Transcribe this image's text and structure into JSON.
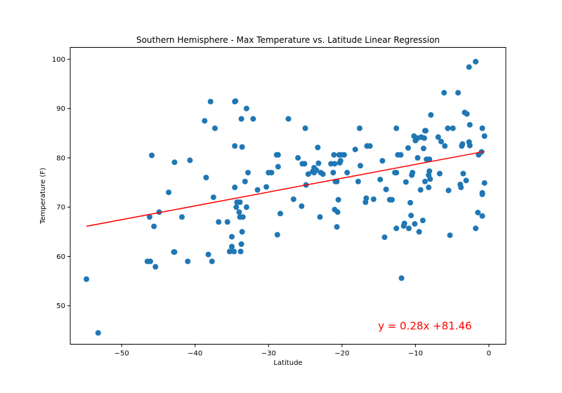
{
  "chart_data": {
    "type": "scatter",
    "title": "Southern Hemisphere - Max Temperature vs. Latitude Linear Regression",
    "xlabel": "Latitude",
    "ylabel": "Temperature (F)",
    "xlim": [
      -57,
      2.3
    ],
    "ylim": [
      42.2,
      102.4
    ],
    "xticks": [
      -50,
      -40,
      -30,
      -20,
      -10,
      0
    ],
    "xtick_labels": [
      "−50",
      "−40",
      "−30",
      "−20",
      "−10",
      "0"
    ],
    "yticks": [
      50,
      60,
      70,
      80,
      90,
      100
    ],
    "grid": false,
    "point_color": "#1f77b4",
    "line_color": "#ff0000",
    "series": [
      {
        "points": [
          [
            -54.8,
            55.4
          ],
          [
            -53.2,
            44.5
          ],
          [
            -46.5,
            59.0
          ],
          [
            -46.1,
            59.0
          ],
          [
            -46.2,
            68.0
          ],
          [
            -45.9,
            80.5
          ],
          [
            -45.6,
            66.1
          ],
          [
            -45.4,
            57.9
          ],
          [
            -44.9,
            69.0
          ],
          [
            -43.6,
            73.0
          ],
          [
            -42.9,
            60.9
          ],
          [
            -42.8,
            60.9
          ],
          [
            -42.8,
            79.1
          ],
          [
            -41.8,
            68.0
          ],
          [
            -41.0,
            59.0
          ],
          [
            -40.7,
            79.5
          ],
          [
            -38.7,
            87.5
          ],
          [
            -38.5,
            76.0
          ],
          [
            -38.2,
            60.4
          ],
          [
            -37.9,
            91.4
          ],
          [
            -37.7,
            59.0
          ],
          [
            -37.5,
            72.0
          ],
          [
            -37.3,
            86.0
          ],
          [
            -36.8,
            67.0
          ],
          [
            -35.6,
            67.0
          ],
          [
            -35.3,
            61.0
          ],
          [
            -35.0,
            64.0
          ],
          [
            -35.0,
            62.0
          ],
          [
            -34.7,
            61.0
          ],
          [
            -34.6,
            82.4
          ],
          [
            -34.6,
            91.4
          ],
          [
            -34.5,
            91.5
          ],
          [
            -34.6,
            74.0
          ],
          [
            -34.4,
            70.0
          ],
          [
            -34.3,
            71.0
          ],
          [
            -34.0,
            69.0
          ],
          [
            -33.9,
            71.0
          ],
          [
            -33.9,
            68.0
          ],
          [
            -33.7,
            62.5
          ],
          [
            -33.8,
            61.0
          ],
          [
            -33.6,
            65.0
          ],
          [
            -33.6,
            82.2
          ],
          [
            -33.5,
            68.0
          ],
          [
            -33.7,
            87.9
          ],
          [
            -33.2,
            75.2
          ],
          [
            -33.0,
            90.0
          ],
          [
            -33.0,
            70.0
          ],
          [
            -32.8,
            77.0
          ],
          [
            -32.1,
            87.9
          ],
          [
            -31.5,
            73.5
          ],
          [
            -30.3,
            74.1
          ],
          [
            -30.0,
            77.0
          ],
          [
            -29.6,
            77.0
          ],
          [
            -28.9,
            80.6
          ],
          [
            -28.8,
            64.4
          ],
          [
            -28.7,
            80.6
          ],
          [
            -28.7,
            78.2
          ],
          [
            -28.4,
            68.7
          ],
          [
            -27.3,
            87.9
          ],
          [
            -26.6,
            71.6
          ],
          [
            -26.0,
            80.0
          ],
          [
            -25.5,
            70.2
          ],
          [
            -25.4,
            78.8
          ],
          [
            -25.1,
            78.8
          ],
          [
            -25.0,
            86.0
          ],
          [
            -24.9,
            74.5
          ],
          [
            -24.6,
            76.7
          ],
          [
            -24.0,
            77.2
          ],
          [
            -23.8,
            77.0
          ],
          [
            -23.8,
            78.0
          ],
          [
            -23.5,
            77.5
          ],
          [
            -23.3,
            82.1
          ],
          [
            -23.2,
            78.9
          ],
          [
            -23.0,
            68.0
          ],
          [
            -22.9,
            77.0
          ],
          [
            -22.6,
            76.7
          ],
          [
            -21.5,
            78.8
          ],
          [
            -21.2,
            77.0
          ],
          [
            -21.1,
            80.6
          ],
          [
            -21.0,
            78.8
          ],
          [
            -21.0,
            69.5
          ],
          [
            -20.9,
            75.2
          ],
          [
            -20.7,
            75.2
          ],
          [
            -20.7,
            66.0
          ],
          [
            -20.6,
            69.0
          ],
          [
            -20.5,
            71.5
          ],
          [
            -20.4,
            80.6
          ],
          [
            -20.3,
            79.0
          ],
          [
            -20.2,
            79.4
          ],
          [
            -20.1,
            80.6
          ],
          [
            -19.7,
            80.6
          ],
          [
            -19.3,
            77.0
          ],
          [
            -18.2,
            81.7
          ],
          [
            -17.8,
            75.2
          ],
          [
            -17.6,
            86.0
          ],
          [
            -17.5,
            78.4
          ],
          [
            -16.8,
            71.0
          ],
          [
            -16.7,
            71.8
          ],
          [
            -16.6,
            82.4
          ],
          [
            -16.2,
            82.4
          ],
          [
            -15.7,
            71.6
          ],
          [
            -14.8,
            75.6
          ],
          [
            -14.5,
            79.4
          ],
          [
            -14.2,
            63.9
          ],
          [
            -14.0,
            73.6
          ],
          [
            -13.5,
            71.5
          ],
          [
            -13.2,
            71.5
          ],
          [
            -12.8,
            77.0
          ],
          [
            -12.6,
            77.0
          ],
          [
            -12.6,
            65.7
          ],
          [
            -12.6,
            86.0
          ],
          [
            -12.4,
            80.6
          ],
          [
            -12.0,
            80.6
          ],
          [
            -11.9,
            55.6
          ],
          [
            -11.6,
            66.2
          ],
          [
            -11.5,
            66.7
          ],
          [
            -11.3,
            75.1
          ],
          [
            -11.0,
            82.0
          ],
          [
            -10.9,
            65.7
          ],
          [
            -10.7,
            70.9
          ],
          [
            -10.6,
            68.3
          ],
          [
            -10.5,
            76.5
          ],
          [
            -10.4,
            77.0
          ],
          [
            -10.2,
            84.4
          ],
          [
            -10.1,
            66.6
          ],
          [
            -10.0,
            83.5
          ],
          [
            -9.7,
            84.0
          ],
          [
            -9.7,
            80.0
          ],
          [
            -9.5,
            65.0
          ],
          [
            -9.3,
            73.5
          ],
          [
            -9.2,
            84.2
          ],
          [
            -9.0,
            67.3
          ],
          [
            -8.9,
            81.9
          ],
          [
            -8.8,
            84.0
          ],
          [
            -8.7,
            75.2
          ],
          [
            -8.7,
            85.5
          ],
          [
            -8.6,
            85.5
          ],
          [
            -8.5,
            79.7
          ],
          [
            -8.2,
            74.0
          ],
          [
            -8.2,
            76.5
          ],
          [
            -8.1,
            77.3
          ],
          [
            -8.1,
            79.7
          ],
          [
            -7.9,
            88.7
          ],
          [
            -8.0,
            75.7
          ],
          [
            -6.9,
            84.2
          ],
          [
            -6.7,
            76.8
          ],
          [
            -6.5,
            83.3
          ],
          [
            -6.1,
            93.2
          ],
          [
            -6.0,
            82.4
          ],
          [
            -5.6,
            86.0
          ],
          [
            -5.5,
            73.4
          ],
          [
            -5.3,
            64.3
          ],
          [
            -4.9,
            86.0
          ],
          [
            -4.2,
            93.2
          ],
          [
            -3.9,
            74.6
          ],
          [
            -3.8,
            74.0
          ],
          [
            -3.7,
            82.4
          ],
          [
            -3.6,
            82.8
          ],
          [
            -3.5,
            76.8
          ],
          [
            -3.3,
            89.2
          ],
          [
            -3.1,
            75.4
          ],
          [
            -3.0,
            88.9
          ],
          [
            -2.7,
            83.2
          ],
          [
            -2.6,
            86.7
          ],
          [
            -2.6,
            82.5
          ],
          [
            -2.7,
            98.4
          ],
          [
            -1.8,
            99.5
          ],
          [
            -1.8,
            65.7
          ],
          [
            -1.5,
            68.9
          ],
          [
            -1.4,
            80.6
          ],
          [
            -1.0,
            81.2
          ],
          [
            -0.9,
            86.0
          ],
          [
            -0.9,
            72.9
          ],
          [
            -0.9,
            72.6
          ],
          [
            -0.9,
            68.2
          ],
          [
            -0.6,
            74.9
          ],
          [
            -0.6,
            84.4
          ]
        ]
      }
    ],
    "regression": {
      "slope": 0.28,
      "intercept": 81.46,
      "x_start": -54.8,
      "x_end": -0.6
    },
    "annotation": {
      "text": "y = 0.28x +81.46",
      "x": -15.1,
      "y": 45.2,
      "color": "#ff0000"
    }
  }
}
